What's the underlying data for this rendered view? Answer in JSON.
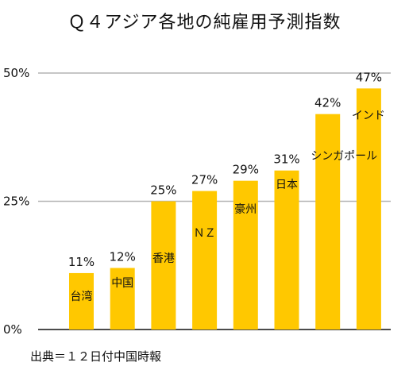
{
  "title": "Ｑ４アジア各地の純雇用予測指数",
  "source": "出典＝１２日付中国時報",
  "chart_data": {
    "type": "bar",
    "categories": [
      "台湾",
      "中国",
      "香港",
      "ＮＺ",
      "豪州",
      "日本",
      "シンガポール",
      "インド"
    ],
    "values": [
      11,
      12,
      25,
      27,
      29,
      31,
      42,
      47
    ],
    "value_labels": [
      "11%",
      "12%",
      "25%",
      "27%",
      "29%",
      "31%",
      "42%",
      "47%"
    ],
    "yticks": [
      {
        "value": 0,
        "label": "0%"
      },
      {
        "value": 25,
        "label": "25%"
      },
      {
        "value": 50,
        "label": "50%"
      }
    ],
    "ylim": [
      0,
      50
    ],
    "grid": true,
    "bar_color": "#FFC800",
    "grid_color": "#b3b3b3"
  }
}
